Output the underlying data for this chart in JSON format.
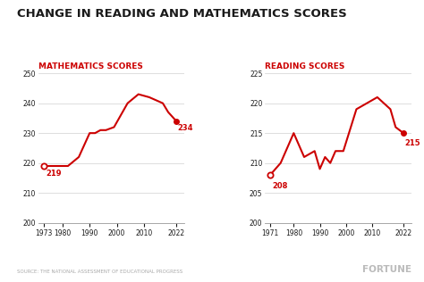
{
  "title": "CHANGE IN READING AND MATHEMATICS SCORES",
  "title_fontsize": 9.5,
  "background_color": "#ffffff",
  "line_color": "#cc0000",
  "text_color": "#1a1a1a",
  "source_text": "SOURCE: THE NATIONAL ASSESSMENT OF EDUCATIONAL PROGRESS",
  "fortune_text": "FORTUNE",
  "math": {
    "label": "MATHEMATICS SCORES",
    "years": [
      1973,
      1978,
      1982,
      1986,
      1990,
      1992,
      1994,
      1996,
      1999,
      2004,
      2008,
      2012,
      2017,
      2019,
      2022
    ],
    "scores": [
      219,
      219,
      219,
      222,
      230,
      230,
      231,
      231,
      232,
      240,
      243,
      242,
      240,
      237,
      234
    ],
    "start_label": "219",
    "end_label": "234",
    "ylim": [
      200,
      250
    ],
    "yticks": [
      200,
      210,
      220,
      230,
      240,
      250
    ],
    "xticks": [
      1973,
      1980,
      1990,
      2000,
      2010,
      2022
    ],
    "xlim_left": 1971,
    "xlim_right": 2025
  },
  "reading": {
    "label": "READING SCORES",
    "years": [
      1971,
      1975,
      1980,
      1984,
      1988,
      1990,
      1992,
      1994,
      1996,
      1999,
      2004,
      2008,
      2012,
      2017,
      2019,
      2022
    ],
    "scores": [
      208,
      210,
      215,
      211,
      212,
      209,
      211,
      210,
      212,
      212,
      219,
      220,
      221,
      219,
      216,
      215
    ],
    "start_label": "208",
    "end_label": "215",
    "ylim": [
      200,
      225
    ],
    "yticks": [
      200,
      205,
      210,
      215,
      220,
      225
    ],
    "xticks": [
      1971,
      1980,
      1990,
      2000,
      2010,
      2022
    ],
    "xlim_left": 1969,
    "xlim_right": 2025
  }
}
